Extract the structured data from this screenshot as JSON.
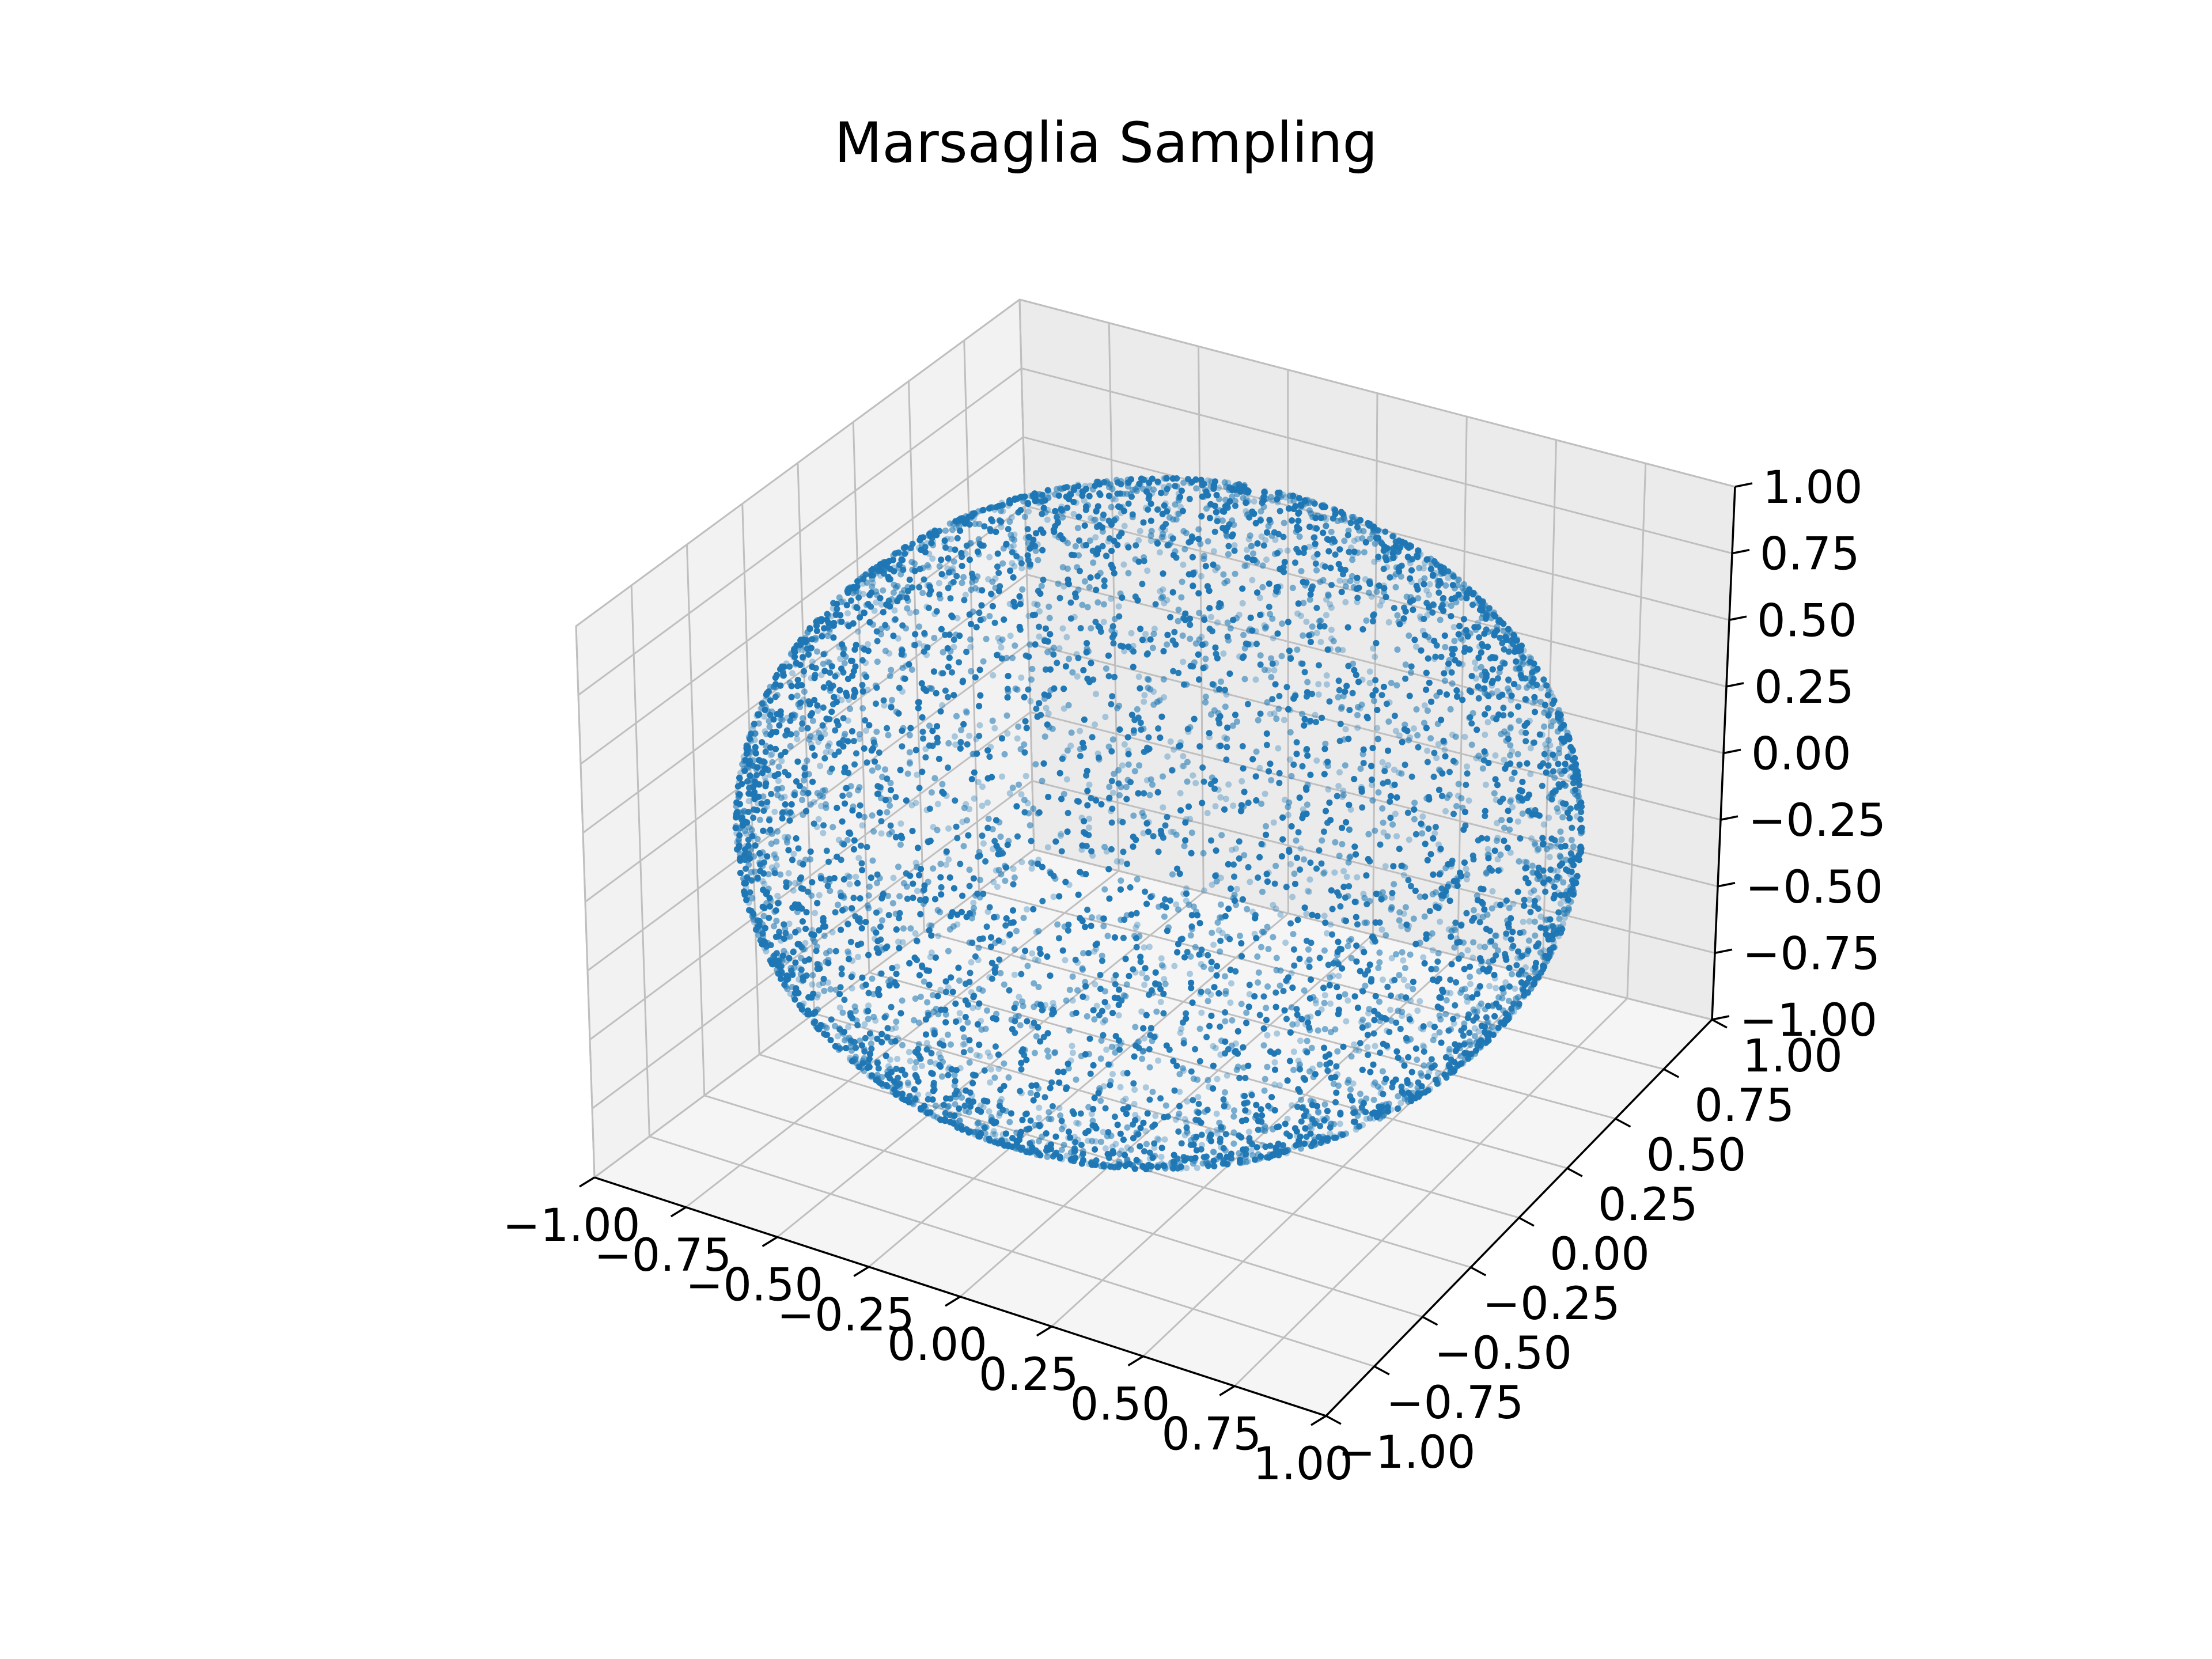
{
  "chart_data": {
    "type": "scatter",
    "projection": "3d",
    "title": "Marsaglia Sampling",
    "description_of_data": "Points sampled uniformly on the unit sphere via Marsaglia's method",
    "point_count": 10000,
    "sphere_radius": 1.0,
    "series": [
      {
        "marker_color": "#1f77b4"
      }
    ],
    "xlim": [
      -1.0,
      1.0
    ],
    "ylim": [
      -1.0,
      1.0
    ],
    "zlim": [
      -1.0,
      1.0
    ],
    "ticks": [
      -1.0,
      -0.75,
      -0.5,
      -0.25,
      0.0,
      0.25,
      0.5,
      0.75,
      1.0
    ],
    "x_tick_labels": [
      "−1.00",
      "−0.75",
      "−0.50",
      "−0.25",
      "0.00",
      "0.25",
      "0.50",
      "0.75",
      "1.00"
    ],
    "y_tick_labels": [
      "−1.00",
      "−0.75",
      "−0.50",
      "−0.25",
      "0.00",
      "0.25",
      "0.50",
      "0.75",
      "1.00"
    ],
    "z_tick_labels": [
      "−1.00",
      "−0.75",
      "−0.50",
      "−0.25",
      "0.00",
      "0.25",
      "0.50",
      "0.75",
      "1.00"
    ],
    "xlabel": "",
    "ylabel": "",
    "zlabel": "",
    "grid": true,
    "legend": "none"
  }
}
